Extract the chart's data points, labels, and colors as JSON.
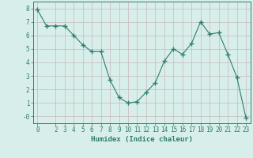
{
  "x": [
    0,
    1,
    2,
    3,
    4,
    5,
    6,
    7,
    8,
    9,
    10,
    11,
    12,
    13,
    14,
    15,
    16,
    17,
    18,
    19,
    20,
    21,
    22,
    23
  ],
  "y": [
    7.9,
    6.7,
    6.7,
    6.7,
    6.0,
    5.3,
    4.8,
    4.8,
    2.7,
    1.4,
    1.0,
    1.1,
    1.8,
    2.5,
    4.1,
    5.0,
    4.6,
    5.4,
    7.0,
    6.1,
    6.2,
    4.6,
    2.9,
    -0.1
  ],
  "line_color": "#2e7d6e",
  "marker": "+",
  "marker_size": 4,
  "bg_color": "#d8eeea",
  "grid_color": "#c8b8b8",
  "xlabel": "Humidex (Indice chaleur)",
  "xlim": [
    -0.5,
    23.5
  ],
  "ylim": [
    -0.5,
    8.5
  ],
  "yticks": [
    0,
    1,
    2,
    3,
    4,
    5,
    6,
    7,
    8
  ],
  "ytick_labels": [
    "-0",
    "1",
    "2",
    "3",
    "4",
    "5",
    "6",
    "7",
    "8"
  ],
  "xticks": [
    0,
    2,
    3,
    4,
    5,
    6,
    7,
    8,
    9,
    10,
    11,
    12,
    13,
    14,
    15,
    16,
    17,
    18,
    19,
    20,
    21,
    22,
    23
  ],
  "font_color": "#2e7d6e",
  "axis_color": "#2e7d6e",
  "xlabel_fontsize": 6.5,
  "tick_fontsize": 5.5
}
